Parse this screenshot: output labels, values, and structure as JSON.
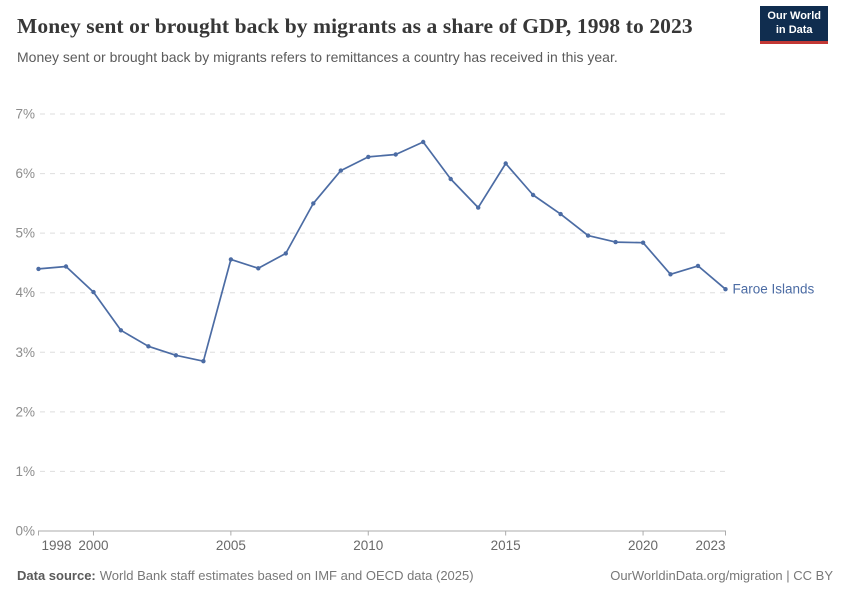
{
  "header": {
    "title": "Money sent or brought back by migrants as a share of GDP, 1998 to 2023",
    "subtitle": "Money sent or brought back by migrants refers to remittances a country has received in this year.",
    "logo": {
      "line1": "Our World",
      "line2": "in Data",
      "bg_color": "#102D4F",
      "bar_color": "#C23835"
    }
  },
  "chart_data": {
    "type": "line",
    "title": "Money sent or brought back by migrants as a share of GDP, 1998 to 2023",
    "xlabel": "",
    "ylabel": "",
    "xlim": [
      1998,
      2023
    ],
    "ylim": [
      0,
      7
    ],
    "grid": "horizontal-dashed",
    "legend_position": "end-of-line-label",
    "x_ticks": [
      1998,
      2000,
      2005,
      2010,
      2015,
      2020,
      2023
    ],
    "y_tick_labels": [
      "0%",
      "1%",
      "2%",
      "3%",
      "4%",
      "5%",
      "6%",
      "7%"
    ],
    "series": [
      {
        "name": "Faroe Islands",
        "color": "#4C6CA4",
        "years": [
          1998,
          1999,
          2000,
          2001,
          2002,
          2003,
          2004,
          2005,
          2006,
          2007,
          2008,
          2009,
          2010,
          2011,
          2012,
          2013,
          2014,
          2015,
          2016,
          2017,
          2018,
          2019,
          2020,
          2021,
          2022,
          2023
        ],
        "values": [
          4.4,
          4.44,
          4.01,
          3.37,
          3.1,
          2.95,
          2.85,
          4.56,
          4.41,
          4.66,
          5.5,
          6.05,
          6.28,
          6.32,
          6.53,
          5.91,
          5.43,
          6.17,
          5.64,
          5.32,
          4.96,
          4.85,
          4.84,
          4.31,
          4.45,
          4.06
        ]
      }
    ]
  },
  "footer": {
    "source_label": "Data source:",
    "source_text": "World Bank staff estimates based on IMF and OECD data (2025)",
    "credit": "OurWorldinData.org/migration | CC BY"
  }
}
